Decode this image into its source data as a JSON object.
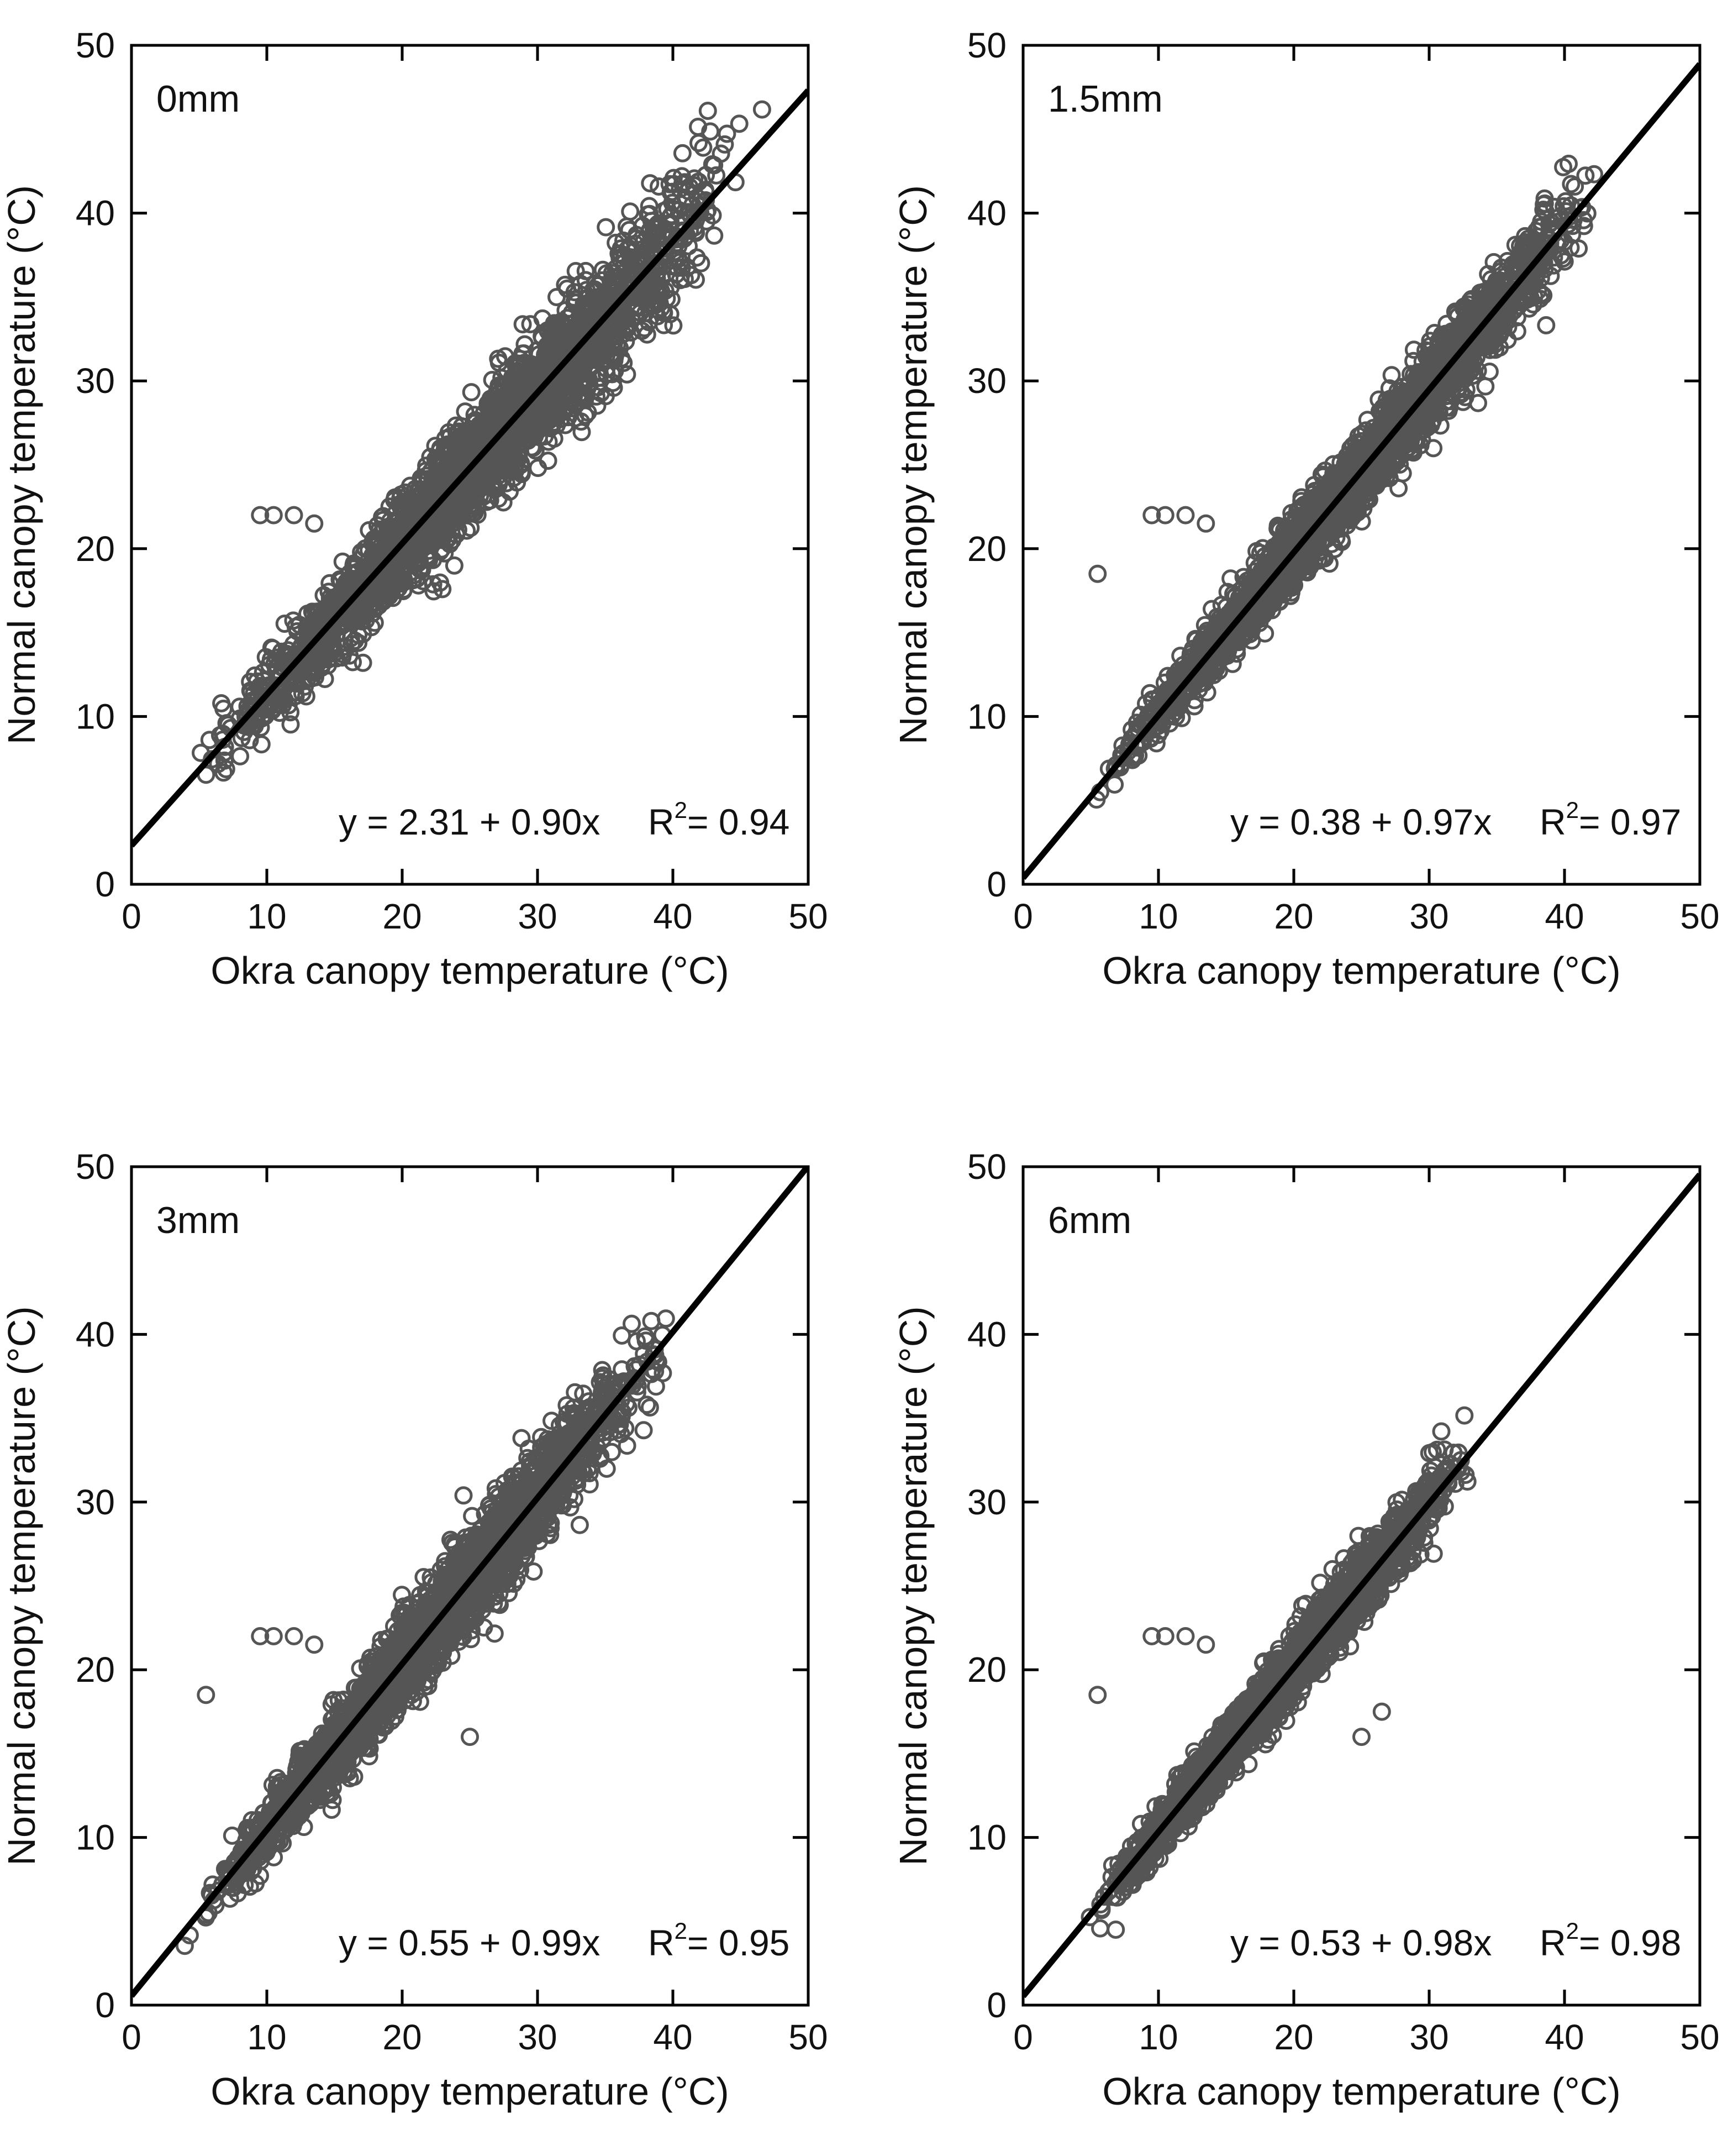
{
  "chart_data": [
    {
      "type": "scatter",
      "panel": "0mm",
      "xlabel": "Okra canopy temperature (°C)",
      "ylabel": "Normal canopy temperature (°C)",
      "xlim": [
        0,
        50
      ],
      "ylim": [
        0,
        50
      ],
      "xticks": [
        "0",
        "10",
        "20",
        "30",
        "40",
        "50"
      ],
      "yticks": [
        "0",
        "10",
        "20",
        "30",
        "40",
        "50"
      ],
      "intercept": 2.31,
      "slope": 0.9,
      "equation": "y = 2.31 + 0.90x",
      "r2_label": "R",
      "r2_sup": "2",
      "r2_value": "= 0.94",
      "point_color": "#555555",
      "line_color": "#000000",
      "series": [
        {
          "name": "observations",
          "x_range": [
            4,
            47
          ],
          "cluster_dense": true
        }
      ]
    },
    {
      "type": "scatter",
      "panel": "1.5mm",
      "xlabel": "Okra canopy temperature (°C)",
      "ylabel": "Normal canopy temperature (°C)",
      "xlim": [
        0,
        50
      ],
      "ylim": [
        0,
        50
      ],
      "xticks": [
        "0",
        "10",
        "20",
        "30",
        "40",
        "50"
      ],
      "yticks": [
        "0",
        "10",
        "20",
        "30",
        "40",
        "50"
      ],
      "intercept": 0.38,
      "slope": 0.97,
      "equation": "y = 0.38 + 0.97x",
      "r2_label": "R",
      "r2_sup": "2",
      "r2_value": "= 0.97",
      "point_color": "#555555",
      "line_color": "#000000",
      "series": [
        {
          "name": "observations",
          "x_range": [
            4,
            44
          ],
          "cluster_dense": true
        }
      ]
    },
    {
      "type": "scatter",
      "panel": "3mm",
      "xlabel": "Okra canopy temperature (°C)",
      "ylabel": "Normal canopy temperature (°C)",
      "xlim": [
        0,
        50
      ],
      "ylim": [
        0,
        50
      ],
      "xticks": [
        "0",
        "10",
        "20",
        "30",
        "40",
        "50"
      ],
      "yticks": [
        "0",
        "10",
        "20",
        "30",
        "40",
        "50"
      ],
      "intercept": 0.55,
      "slope": 0.99,
      "equation": "y = 0.55 + 0.99x",
      "r2_label": "R",
      "r2_sup": "2",
      "r2_value": "= 0.95",
      "point_color": "#555555",
      "line_color": "#000000",
      "series": [
        {
          "name": "observations",
          "x_range": [
            3,
            41
          ],
          "cluster_dense": true
        }
      ]
    },
    {
      "type": "scatter",
      "panel": "6mm",
      "xlabel": "Okra canopy temperature (°C)",
      "ylabel": "Normal canopy temperature (°C)",
      "xlim": [
        0,
        50
      ],
      "ylim": [
        0,
        50
      ],
      "xticks": [
        "0",
        "10",
        "20",
        "30",
        "40",
        "50"
      ],
      "yticks": [
        "0",
        "10",
        "20",
        "30",
        "40",
        "50"
      ],
      "intercept": 0.53,
      "slope": 0.98,
      "equation": "y = 0.53 + 0.98x",
      "r2_label": "R",
      "r2_sup": "2",
      "r2_value": "= 0.98",
      "point_color": "#555555",
      "line_color": "#000000",
      "series": [
        {
          "name": "observations",
          "x_range": [
            4,
            34
          ],
          "cluster_dense": true
        }
      ]
    }
  ]
}
